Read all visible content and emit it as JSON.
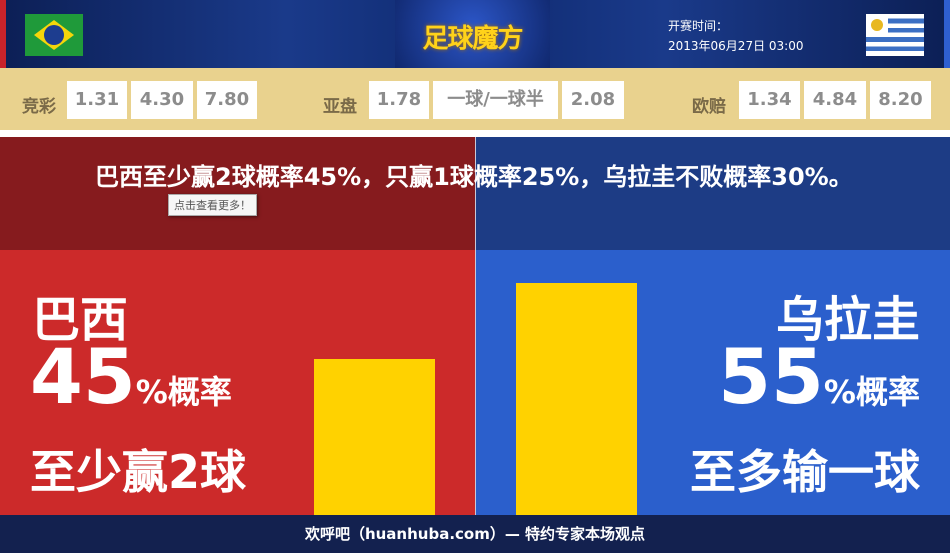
{
  "header": {
    "logo": "足球魔方",
    "kickoff_label": "开赛时间：",
    "kickoff_time": "2013年06月27日 03:00",
    "home_flag": "brazil-flag",
    "away_flag": "uruguay-flag"
  },
  "odds": {
    "jingcai": {
      "label": "竞彩",
      "values": [
        "1.31",
        "4.30",
        "7.80"
      ]
    },
    "yapan": {
      "label": "亚盘",
      "values": [
        "1.78",
        "一球/一球半",
        "2.08"
      ]
    },
    "ouzhou": {
      "label": "欧赔",
      "values": [
        "1.34",
        "4.84",
        "8.20"
      ]
    }
  },
  "headline": "巴西至少赢2球概率45%，只赢1球概率25%，乌拉圭不败概率30%。",
  "tooltip": "点击查看更多！",
  "home": {
    "team": "巴西",
    "pct": "45",
    "pct_suffix": "%概率",
    "desc": "至少赢2球",
    "bar_value": 45,
    "color": "#cc2a2a"
  },
  "away": {
    "team": "乌拉圭",
    "pct": "55",
    "pct_suffix": "%概率",
    "desc": "至多输一球",
    "bar_value": 55,
    "color": "#2b5fcc"
  },
  "footer": "欢呼吧（huanhuba.com）— 特约专家本场观点"
}
